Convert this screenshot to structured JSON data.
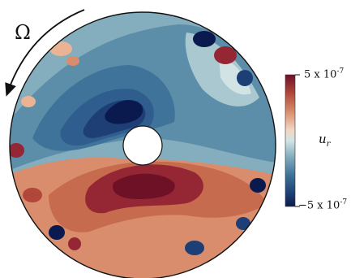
{
  "labels": {
    "rotation_symbol": "Ω",
    "colorbar_max": "5 x 10",
    "colorbar_max_exp": "-7",
    "colorbar_min": "−5 x 10",
    "colorbar_min_exp": "-7",
    "field_variable": "u",
    "field_variable_sub": "r"
  },
  "colors": {
    "colormap": [
      "#0a1a4f",
      "#1e3f76",
      "#2e5d8e",
      "#3f7399",
      "#5d8ea9",
      "#84aebe",
      "#a9c8d0",
      "#d2e3e6",
      "#f3d6c4",
      "#e9b394",
      "#d98d6c",
      "#c76b4f",
      "#b1473a",
      "#942733",
      "#6e1127"
    ],
    "disk_edge": "#111111"
  }
}
